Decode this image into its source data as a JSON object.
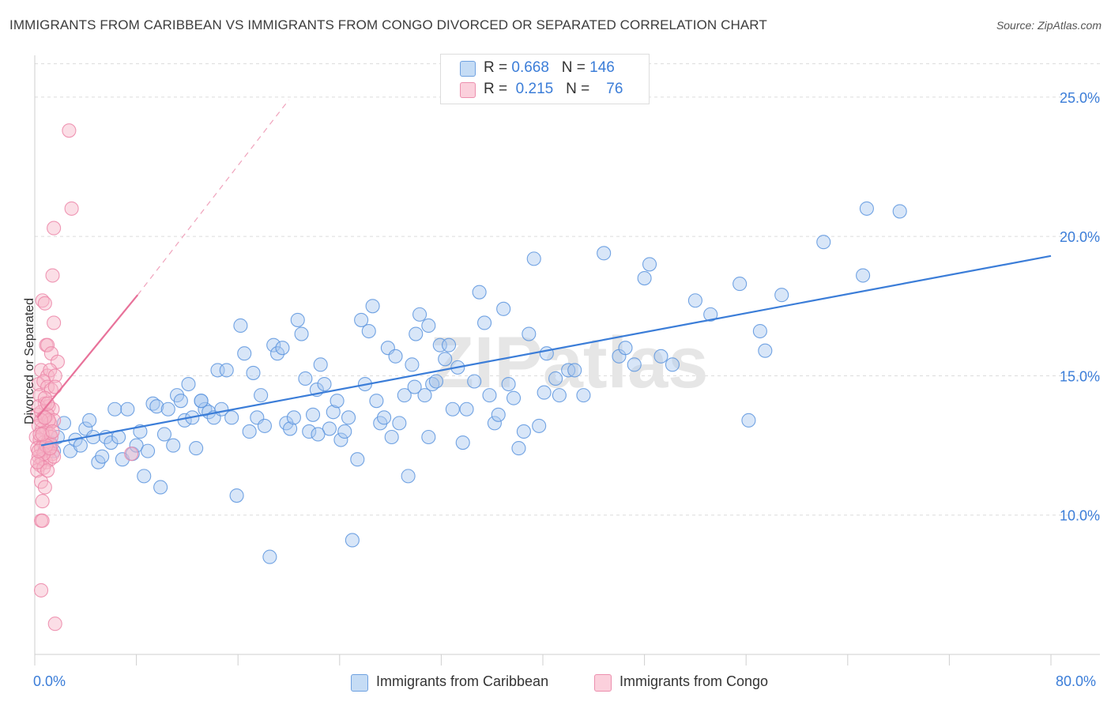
{
  "header": {
    "title": "IMMIGRANTS FROM CARIBBEAN VS IMMIGRANTS FROM CONGO DIVORCED OR SEPARATED CORRELATION CHART",
    "source": "Source: ZipAtlas.com"
  },
  "legend": {
    "rows": [
      {
        "r_label": "R =",
        "r_value": "0.668",
        "n_label": "N =",
        "n_value": "146",
        "color": "#a8c8f0"
      },
      {
        "r_label": "R =",
        "r_value": "0.215",
        "n_label": "N =",
        "n_value": "76",
        "color": "#f7b6c8"
      }
    ]
  },
  "bottom_legend": {
    "caribbean": "Immigrants from Caribbean",
    "congo": "Immigrants from Congo"
  },
  "watermark": "ZIPatlas",
  "chart_data": {
    "type": "scatter",
    "ylabel": "Divorced or Separated",
    "xlim": [
      0,
      80
    ],
    "ylim": [
      5,
      26.5
    ],
    "x_tick_labels": [
      "0.0%",
      "80.0%"
    ],
    "y_ticks": [
      10,
      15,
      20,
      25
    ],
    "y_tick_labels": [
      "10.0%",
      "15.0%",
      "20.0%",
      "25.0%"
    ],
    "grid": true,
    "colors": {
      "caribbean": "#3b7dd8",
      "caribbean_fill": "#a8c8f0",
      "congo": "#e8729a",
      "congo_fill": "#f7b6c8"
    },
    "series": [
      {
        "name": "Immigrants from Caribbean",
        "trend": {
          "x": [
            0.5,
            80
          ],
          "y": [
            12.5,
            19.3
          ]
        },
        "points": [
          [
            0.8,
            12.4
          ],
          [
            1.2,
            12.6
          ],
          [
            1.5,
            12.3
          ],
          [
            1.8,
            12.8
          ],
          [
            2.3,
            13.3
          ],
          [
            2.8,
            12.3
          ],
          [
            3.2,
            12.7
          ],
          [
            3.6,
            12.5
          ],
          [
            4.0,
            13.1
          ],
          [
            4.3,
            13.4
          ],
          [
            4.6,
            12.8
          ],
          [
            5.0,
            11.9
          ],
          [
            5.3,
            12.1
          ],
          [
            5.6,
            12.8
          ],
          [
            6.0,
            12.6
          ],
          [
            6.3,
            13.8
          ],
          [
            6.6,
            12.8
          ],
          [
            6.9,
            12.0
          ],
          [
            7.3,
            13.8
          ],
          [
            7.7,
            12.2
          ],
          [
            8.0,
            12.5
          ],
          [
            8.3,
            13.0
          ],
          [
            8.6,
            11.4
          ],
          [
            8.9,
            12.3
          ],
          [
            9.3,
            14.0
          ],
          [
            9.6,
            13.9
          ],
          [
            9.9,
            11.0
          ],
          [
            10.2,
            12.9
          ],
          [
            10.5,
            13.8
          ],
          [
            10.9,
            12.5
          ],
          [
            11.2,
            14.3
          ],
          [
            11.5,
            14.1
          ],
          [
            11.8,
            13.4
          ],
          [
            12.1,
            14.7
          ],
          [
            12.4,
            13.5
          ],
          [
            12.7,
            12.4
          ],
          [
            13.1,
            14.1
          ],
          [
            13.4,
            13.8
          ],
          [
            13.7,
            13.7
          ],
          [
            14.1,
            13.5
          ],
          [
            14.4,
            15.2
          ],
          [
            14.7,
            13.8
          ],
          [
            15.1,
            15.2
          ],
          [
            15.5,
            13.5
          ],
          [
            15.9,
            10.7
          ],
          [
            16.2,
            16.8
          ],
          [
            16.5,
            15.8
          ],
          [
            16.9,
            13.0
          ],
          [
            17.2,
            15.1
          ],
          [
            17.5,
            13.5
          ],
          [
            17.8,
            14.3
          ],
          [
            18.1,
            13.2
          ],
          [
            18.5,
            8.5
          ],
          [
            18.8,
            16.1
          ],
          [
            19.1,
            15.8
          ],
          [
            19.5,
            16.0
          ],
          [
            19.8,
            13.3
          ],
          [
            20.1,
            13.1
          ],
          [
            20.4,
            13.5
          ],
          [
            20.7,
            17.0
          ],
          [
            21.0,
            16.5
          ],
          [
            21.3,
            14.9
          ],
          [
            21.6,
            13.0
          ],
          [
            21.9,
            13.6
          ],
          [
            22.2,
            14.5
          ],
          [
            22.5,
            15.4
          ],
          [
            22.8,
            14.7
          ],
          [
            23.2,
            13.1
          ],
          [
            23.5,
            13.7
          ],
          [
            23.8,
            14.1
          ],
          [
            24.1,
            12.7
          ],
          [
            24.4,
            13.0
          ],
          [
            24.7,
            13.5
          ],
          [
            25.0,
            9.1
          ],
          [
            25.4,
            12.0
          ],
          [
            25.7,
            17.0
          ],
          [
            26.0,
            14.7
          ],
          [
            26.3,
            16.6
          ],
          [
            26.6,
            17.5
          ],
          [
            26.9,
            14.1
          ],
          [
            27.2,
            13.3
          ],
          [
            27.5,
            13.5
          ],
          [
            27.8,
            16.0
          ],
          [
            28.1,
            12.8
          ],
          [
            28.4,
            15.7
          ],
          [
            28.7,
            13.3
          ],
          [
            29.1,
            14.3
          ],
          [
            29.4,
            11.4
          ],
          [
            29.7,
            15.4
          ],
          [
            30.0,
            16.5
          ],
          [
            30.3,
            17.2
          ],
          [
            30.7,
            14.3
          ],
          [
            31.0,
            16.8
          ],
          [
            31.3,
            14.7
          ],
          [
            31.6,
            14.8
          ],
          [
            31.9,
            16.1
          ],
          [
            32.3,
            15.6
          ],
          [
            32.6,
            16.1
          ],
          [
            32.9,
            13.8
          ],
          [
            33.3,
            15.3
          ],
          [
            33.7,
            12.6
          ],
          [
            34.0,
            13.8
          ],
          [
            34.6,
            14.8
          ],
          [
            35.0,
            18.0
          ],
          [
            35.4,
            16.9
          ],
          [
            35.8,
            14.3
          ],
          [
            36.2,
            13.3
          ],
          [
            36.5,
            13.6
          ],
          [
            36.9,
            17.4
          ],
          [
            37.3,
            14.7
          ],
          [
            37.7,
            14.2
          ],
          [
            38.1,
            12.4
          ],
          [
            38.5,
            13.0
          ],
          [
            38.9,
            16.5
          ],
          [
            39.3,
            19.2
          ],
          [
            39.7,
            13.2
          ],
          [
            40.3,
            15.8
          ],
          [
            41.0,
            14.9
          ],
          [
            41.3,
            14.3
          ],
          [
            42.0,
            15.2
          ],
          [
            42.5,
            15.2
          ],
          [
            43.2,
            14.3
          ],
          [
            44.8,
            19.4
          ],
          [
            46.0,
            15.7
          ],
          [
            46.5,
            16.0
          ],
          [
            47.2,
            15.4
          ],
          [
            48.0,
            18.5
          ],
          [
            48.4,
            19.0
          ],
          [
            49.3,
            15.7
          ],
          [
            50.2,
            15.4
          ],
          [
            52.0,
            17.7
          ],
          [
            53.2,
            17.2
          ],
          [
            55.5,
            18.3
          ],
          [
            56.2,
            13.4
          ],
          [
            57.1,
            16.6
          ],
          [
            57.5,
            15.9
          ],
          [
            58.8,
            17.9
          ],
          [
            62.1,
            19.8
          ],
          [
            65.2,
            18.6
          ],
          [
            65.5,
            21.0
          ],
          [
            68.1,
            20.9
          ],
          [
            40.1,
            14.4
          ],
          [
            31.0,
            12.8
          ],
          [
            13.1,
            14.1
          ],
          [
            22.3,
            12.9
          ],
          [
            29.9,
            14.6
          ]
        ]
      },
      {
        "name": "Immigrants from Congo",
        "trend": {
          "x": [
            0.2,
            8.1
          ],
          "y": [
            13.5,
            17.9
          ]
        },
        "trend_extension": {
          "x": [
            8.1,
            20.0
          ],
          "y": [
            17.9,
            24.9
          ]
        },
        "points": [
          [
            2.7,
            23.8
          ],
          [
            2.9,
            21.0
          ],
          [
            1.5,
            20.3
          ],
          [
            1.4,
            18.6
          ],
          [
            0.6,
            17.7
          ],
          [
            0.8,
            17.6
          ],
          [
            1.5,
            16.9
          ],
          [
            0.9,
            16.1
          ],
          [
            1.0,
            16.1
          ],
          [
            1.3,
            15.8
          ],
          [
            1.8,
            15.5
          ],
          [
            0.5,
            15.2
          ],
          [
            1.0,
            15.0
          ],
          [
            1.2,
            15.2
          ],
          [
            1.6,
            15.0
          ],
          [
            0.3,
            14.7
          ],
          [
            0.7,
            14.8
          ],
          [
            1.0,
            14.6
          ],
          [
            1.3,
            14.5
          ],
          [
            1.6,
            14.6
          ],
          [
            0.4,
            14.3
          ],
          [
            0.8,
            14.0
          ],
          [
            1.1,
            13.9
          ],
          [
            1.4,
            13.8
          ],
          [
            0.2,
            13.6
          ],
          [
            0.5,
            13.7
          ],
          [
            0.7,
            13.5
          ],
          [
            1.0,
            13.6
          ],
          [
            1.2,
            13.3
          ],
          [
            1.5,
            13.4
          ],
          [
            0.3,
            13.2
          ],
          [
            0.6,
            13.1
          ],
          [
            0.9,
            13.0
          ],
          [
            1.2,
            12.9
          ],
          [
            0.1,
            12.8
          ],
          [
            0.4,
            12.7
          ],
          [
            0.7,
            12.6
          ],
          [
            1.0,
            12.6
          ],
          [
            1.3,
            12.5
          ],
          [
            0.2,
            12.4
          ],
          [
            0.5,
            12.4
          ],
          [
            0.8,
            12.3
          ],
          [
            1.1,
            12.3
          ],
          [
            1.4,
            12.2
          ],
          [
            0.3,
            12.1
          ],
          [
            0.6,
            12.0
          ],
          [
            0.9,
            11.9
          ],
          [
            1.2,
            12.0
          ],
          [
            1.5,
            12.1
          ],
          [
            0.4,
            11.8
          ],
          [
            0.2,
            11.6
          ],
          [
            0.7,
            11.7
          ],
          [
            1.0,
            11.6
          ],
          [
            0.5,
            11.2
          ],
          [
            0.8,
            11.0
          ],
          [
            0.6,
            10.5
          ],
          [
            0.5,
            9.8
          ],
          [
            0.6,
            9.8
          ],
          [
            0.5,
            7.3
          ],
          [
            1.6,
            6.1
          ],
          [
            7.6,
            12.2
          ],
          [
            0.3,
            13.9
          ],
          [
            0.8,
            14.2
          ],
          [
            1.1,
            13.4
          ],
          [
            0.4,
            12.9
          ],
          [
            0.7,
            12.2
          ],
          [
            1.3,
            12.8
          ],
          [
            0.2,
            11.9
          ],
          [
            0.9,
            12.5
          ],
          [
            0.5,
            13.4
          ],
          [
            1.0,
            14.0
          ],
          [
            0.6,
            12.9
          ],
          [
            1.4,
            13.0
          ],
          [
            0.3,
            12.3
          ],
          [
            0.8,
            13.5
          ],
          [
            1.2,
            12.4
          ]
        ]
      }
    ]
  }
}
